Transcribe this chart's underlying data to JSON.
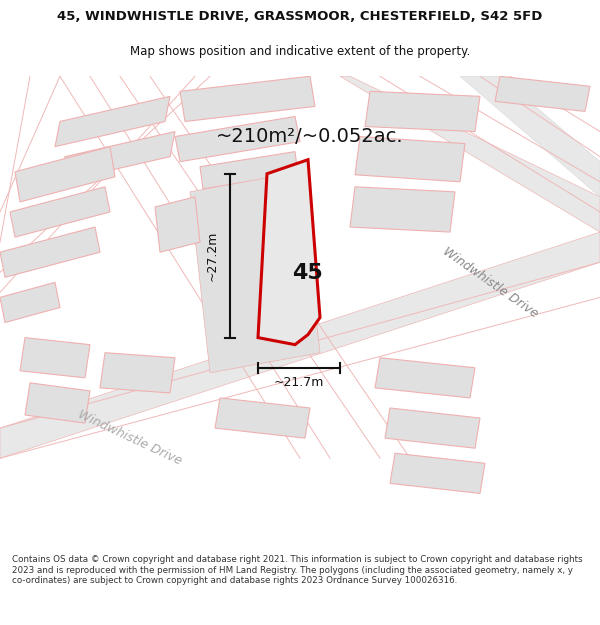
{
  "title_line1": "45, WINDWHISTLE DRIVE, GRASSMOOR, CHESTERFIELD, S42 5FD",
  "title_line2": "Map shows position and indicative extent of the property.",
  "area_text": "~210m²/~0.052ac.",
  "plot_number": "45",
  "dim_height": "~27.2m",
  "dim_width": "~21.7m",
  "road_label_lower": "Windwhistle Drive",
  "road_label_upper": "Windwhistle Drive",
  "footer_text": "Contains OS data © Crown copyright and database right 2021. This information is subject to Crown copyright and database rights 2023 and is reproduced with the permission of HM Land Registry. The polygons (including the associated geometry, namely x, y co-ordinates) are subject to Crown copyright and database rights 2023 Ordnance Survey 100026316.",
  "map_bg": "#ffffff",
  "plot_fill": "#e8e8e8",
  "plot_border": "#cc0000",
  "road_fill": "#e8e8e8",
  "road_border": "#f0b8b8",
  "building_fill": "#e0e0e0",
  "building_border": "#f0b0b0",
  "road_label_color": "#aaaaaa",
  "dim_color": "#111111",
  "title_color": "#111111",
  "footer_color": "#333333",
  "area_color": "#111111"
}
